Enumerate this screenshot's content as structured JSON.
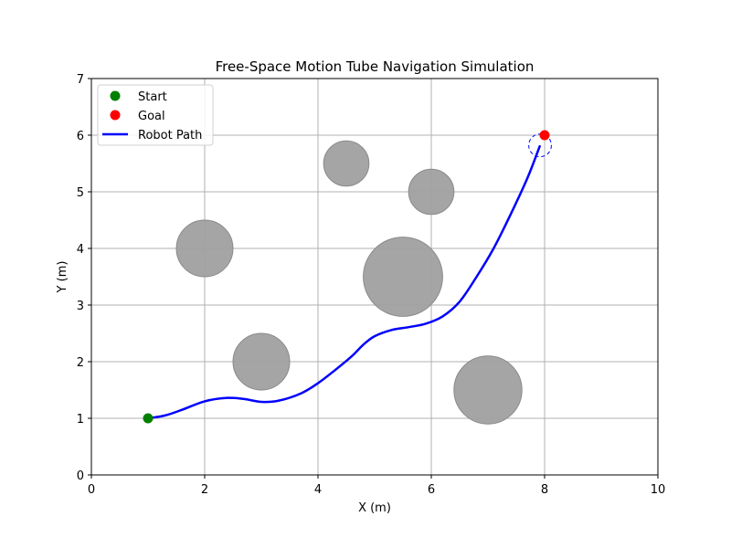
{
  "chart_data": {
    "type": "scatter",
    "title": "Free-Space Motion Tube Navigation Simulation",
    "xlabel": "X (m)",
    "ylabel": "Y (m)",
    "xlim": [
      0,
      10
    ],
    "ylim": [
      0,
      7
    ],
    "x_ticks": [
      0,
      2,
      4,
      6,
      8,
      10
    ],
    "y_ticks": [
      0,
      1,
      2,
      3,
      4,
      5,
      6,
      7
    ],
    "grid": true,
    "legend_position": "top-left",
    "legend": [
      {
        "label": "Start",
        "marker": "dot",
        "color": "#008000"
      },
      {
        "label": "Goal",
        "marker": "dot",
        "color": "#ff0000"
      },
      {
        "label": "Robot Path",
        "marker": "line",
        "color": "#0000ff"
      }
    ],
    "start": {
      "x": 1,
      "y": 1,
      "color": "#008000"
    },
    "goal": {
      "x": 8,
      "y": 6,
      "color": "#ff0000"
    },
    "obstacles": [
      {
        "x": 2.0,
        "y": 4.0,
        "r": 0.5
      },
      {
        "x": 3.0,
        "y": 2.0,
        "r": 0.5
      },
      {
        "x": 4.5,
        "y": 5.5,
        "r": 0.4
      },
      {
        "x": 5.5,
        "y": 3.5,
        "r": 0.7
      },
      {
        "x": 6.0,
        "y": 5.0,
        "r": 0.4
      },
      {
        "x": 7.0,
        "y": 1.5,
        "r": 0.6
      }
    ],
    "obstacle_color": "#a0a0a0",
    "robot": {
      "x": 7.92,
      "y": 5.82,
      "r": 0.2,
      "color": "#0000ff"
    },
    "path": {
      "color": "#0000ff",
      "points": [
        [
          1.0,
          1.0
        ],
        [
          1.3,
          1.05
        ],
        [
          1.6,
          1.15
        ],
        [
          2.0,
          1.3
        ],
        [
          2.4,
          1.36
        ],
        [
          2.7,
          1.34
        ],
        [
          3.0,
          1.29
        ],
        [
          3.3,
          1.31
        ],
        [
          3.7,
          1.44
        ],
        [
          4.0,
          1.62
        ],
        [
          4.3,
          1.85
        ],
        [
          4.6,
          2.1
        ],
        [
          4.8,
          2.3
        ],
        [
          5.0,
          2.45
        ],
        [
          5.3,
          2.56
        ],
        [
          5.6,
          2.61
        ],
        [
          5.9,
          2.67
        ],
        [
          6.2,
          2.8
        ],
        [
          6.5,
          3.06
        ],
        [
          6.8,
          3.5
        ],
        [
          7.1,
          4.0
        ],
        [
          7.4,
          4.6
        ],
        [
          7.7,
          5.25
        ],
        [
          7.92,
          5.82
        ]
      ]
    }
  }
}
